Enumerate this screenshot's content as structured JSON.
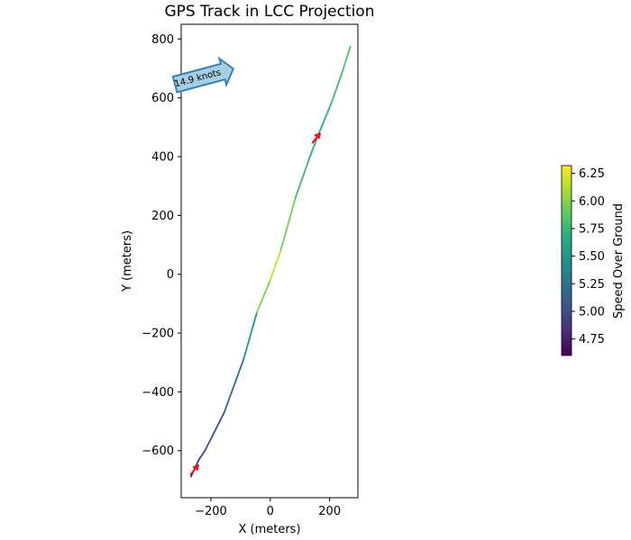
{
  "chart_data": {
    "type": "line",
    "title": "GPS Track in LCC Projection",
    "xlabel": "X (meters)",
    "ylabel": "Y (meters)",
    "xlim": [
      -300,
      295
    ],
    "ylim": [
      -760,
      850
    ],
    "xticks": [
      -200,
      0,
      200
    ],
    "xtick_labels": [
      "−200",
      "0",
      "200"
    ],
    "yticks": [
      -600,
      -400,
      -200,
      0,
      200,
      400,
      600,
      800
    ],
    "ytick_labels": [
      "−600",
      "−400",
      "−200",
      "0",
      "200",
      "400",
      "600",
      "800"
    ],
    "grid": false,
    "track": {
      "x": [
        -267,
        -240,
        -220,
        -155,
        -90,
        -45,
        0,
        35,
        85,
        130,
        160,
        205,
        240,
        270
      ],
      "y": [
        -688,
        -630,
        -600,
        -470,
        -290,
        -130,
        -20,
        80,
        260,
        390,
        470,
        580,
        680,
        775
      ],
      "speed": [
        4.7,
        4.9,
        4.95,
        5.1,
        5.3,
        5.7,
        6.25,
        6.1,
        5.8,
        5.7,
        5.6,
        5.75,
        5.8,
        5.85
      ]
    },
    "colorbar": {
      "label": "Speed Over Ground",
      "min": 4.6,
      "max": 6.32,
      "ticks": [
        4.75,
        5.0,
        5.25,
        5.5,
        5.75,
        6.0,
        6.25
      ],
      "tick_labels": [
        "4.75",
        "5.00",
        "5.25",
        "5.50",
        "5.75",
        "6.00",
        "6.25"
      ],
      "colormap": "viridis"
    },
    "markers": [
      {
        "x": -252,
        "y": -665,
        "color": "#e31a1c"
      },
      {
        "x": 158,
        "y": 463,
        "color": "#e31a1c"
      }
    ],
    "annotation": {
      "text": "14.9 knots",
      "x": -230,
      "y": 670,
      "fill": "#a6cee3",
      "edge": "#3d7fb0"
    }
  }
}
